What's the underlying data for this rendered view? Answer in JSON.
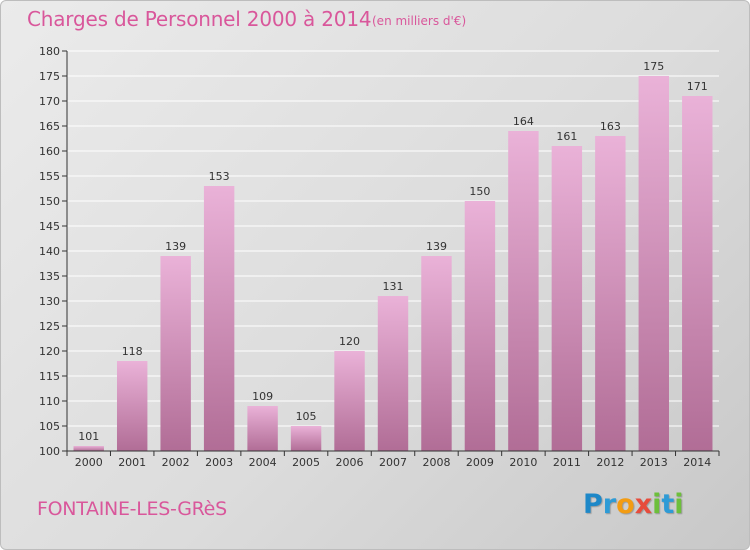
{
  "header": {
    "title": "Charges de Personnel 2000 à 2014",
    "subtitle": "(en milliers d'€)"
  },
  "footer": {
    "location": "FONTAINE-LES-GRèS"
  },
  "logo": {
    "text": "Proxiti",
    "letters": [
      {
        "char": "P",
        "color": "#1e88c8"
      },
      {
        "char": "r",
        "color": "#2e9bd6"
      },
      {
        "char": "o",
        "color": "#f39c12"
      },
      {
        "char": "x",
        "color": "#e74c3c"
      },
      {
        "char": "i",
        "color": "#6dbf3b"
      },
      {
        "char": "t",
        "color": "#2e9bd6"
      },
      {
        "char": "i",
        "color": "#6dbf3b"
      }
    ]
  },
  "colors": {
    "bar_light": "#eab2d8",
    "bar_dark": "#b16d96",
    "axis": "#333333",
    "grid": "#ffffff"
  },
  "chart_data": {
    "type": "bar",
    "title": "Charges de Personnel 2000 à 2014",
    "subtitle": "(en milliers d'€)",
    "xlabel": "",
    "ylabel": "",
    "categories": [
      "2000",
      "2001",
      "2002",
      "2003",
      "2004",
      "2005",
      "2006",
      "2007",
      "2008",
      "2009",
      "2010",
      "2011",
      "2012",
      "2013",
      "2014"
    ],
    "values": [
      101,
      118,
      139,
      153,
      109,
      105,
      120,
      131,
      139,
      150,
      164,
      161,
      163,
      175,
      171
    ],
    "ylim": [
      100,
      180
    ],
    "yticks": [
      100,
      105,
      110,
      115,
      120,
      125,
      130,
      135,
      140,
      145,
      150,
      155,
      160,
      165,
      170,
      175,
      180
    ],
    "grid": true
  }
}
